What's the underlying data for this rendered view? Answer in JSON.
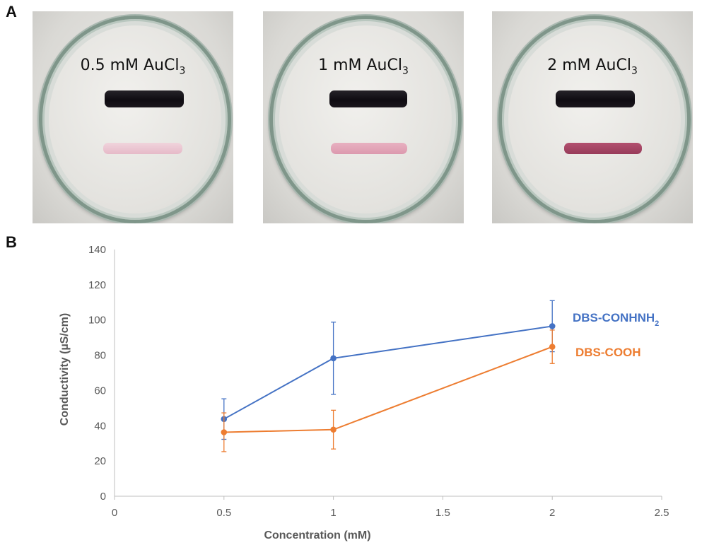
{
  "panels": {
    "a_label": "A",
    "b_label": "B",
    "photos": [
      {
        "label_main": "0.5 mM AuCl",
        "label_sub": "3"
      },
      {
        "label_main": "1 mM AuCl",
        "label_sub": "3"
      },
      {
        "label_main": "2 mM AuCl",
        "label_sub": "3"
      }
    ]
  },
  "colors": {
    "conhnh2": "#4472C4",
    "cooh": "#ED7D31",
    "axis": "#bfbfbf",
    "text": "#595959"
  },
  "chart_data": {
    "type": "line",
    "xlabel": "Concentration (mM)",
    "ylabel": "Conductivity (µS/cm)",
    "xlim": [
      0,
      2.5
    ],
    "ylim": [
      0,
      140
    ],
    "xticks": [
      0,
      0.5,
      1,
      1.5,
      2,
      2.5
    ],
    "yticks": [
      0,
      20,
      40,
      60,
      80,
      100,
      120,
      140
    ],
    "grid": false,
    "series": [
      {
        "name": "DBS-CONHNH",
        "name_sub": "2",
        "color": "#4472C4",
        "x": [
          0.5,
          1,
          2
        ],
        "y": [
          43.8,
          78.3,
          96.5
        ],
        "err": [
          11.5,
          20.5,
          14.5
        ]
      },
      {
        "name": "DBS-COOH",
        "color": "#ED7D31",
        "x": [
          0.5,
          1,
          2
        ],
        "y": [
          36.3,
          37.8,
          84.8
        ],
        "err": [
          11.0,
          11.0,
          9.5
        ]
      }
    ]
  }
}
